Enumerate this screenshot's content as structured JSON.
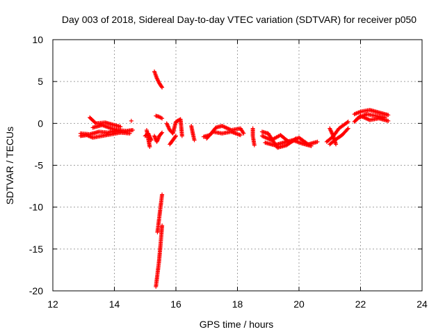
{
  "chart_data": {
    "type": "scatter",
    "title": "Day 003 of 2018, Sidereal Day-to-day VTEC variation (SDTVAR) for receiver p050",
    "xlabel": "GPS time / hours",
    "ylabel": "SDTVAR / TECUs",
    "xlim": [
      12,
      24
    ],
    "ylim": [
      -20,
      10
    ],
    "xticks": [
      12,
      14,
      16,
      18,
      20,
      22,
      24
    ],
    "yticks": [
      -20,
      -15,
      -10,
      -5,
      0,
      5,
      10
    ],
    "grid": true,
    "marker": "+",
    "marker_color": "#ff0000",
    "series": [
      {
        "name": "SDTVAR",
        "segments": [
          {
            "x": [
              12.9,
              13.2,
              13.5,
              13.8,
              14.1,
              14.4,
              14.6
            ],
            "y": [
              -1.2,
              -1.3,
              -1.0,
              -1.1,
              -0.8,
              -0.9,
              -0.8
            ]
          },
          {
            "x": [
              12.9,
              13.1,
              13.3,
              13.6,
              13.9,
              14.2,
              14.5
            ],
            "y": [
              -1.5,
              -1.4,
              -1.7,
              -1.5,
              -1.3,
              -1.1,
              -1.2
            ]
          },
          {
            "x": [
              13.2,
              13.4,
              13.7,
              14.0,
              14.2
            ],
            "y": [
              0.7,
              0.0,
              0.1,
              -0.2,
              -0.4
            ]
          },
          {
            "x": [
              13.3,
              13.6,
              13.9,
              14.2
            ],
            "y": [
              -0.5,
              -0.2,
              -0.6,
              -0.9
            ]
          },
          {
            "x": [
              14.55
            ],
            "y": [
              0.3
            ]
          },
          {
            "x": [
              15.05,
              15.1,
              15.15
            ],
            "y": [
              -0.8,
              -1.8,
              -2.8
            ]
          },
          {
            "x": [
              15.0,
              15.1,
              15.2
            ],
            "y": [
              -1.5,
              -1.2,
              -2.0
            ]
          },
          {
            "x": [
              15.3,
              15.38,
              15.46,
              15.55
            ],
            "y": [
              6.2,
              5.4,
              4.8,
              4.3
            ]
          },
          {
            "x": [
              15.35,
              15.45,
              15.55
            ],
            "y": [
              0.9,
              0.8,
              0.6
            ]
          },
          {
            "x": [
              15.3,
              15.38,
              15.46,
              15.55
            ],
            "y": [
              -1.5,
              -2.2,
              -1.5,
              -1.1
            ]
          },
          {
            "x": [
              15.4,
              15.45,
              15.5,
              15.55
            ],
            "y": [
              -13.0,
              -11.5,
              -10.0,
              -8.5
            ]
          },
          {
            "x": [
              15.35,
              15.4,
              15.45,
              15.5,
              15.55
            ],
            "y": [
              -19.5,
              -18.0,
              -16.5,
              -14.5,
              -12.2
            ]
          },
          {
            "x": [
              15.7,
              15.8,
              15.9,
              16.0,
              16.15,
              16.2
            ],
            "y": [
              0.0,
              -0.8,
              -1.2,
              0.2,
              0.5,
              -1.5
            ]
          },
          {
            "x": [
              15.8,
              15.9,
              16.0
            ],
            "y": [
              -2.5,
              -2.0,
              -1.5
            ]
          },
          {
            "x": [
              16.5,
              16.55,
              16.6
            ],
            "y": [
              -0.3,
              -1.2,
              -2.0
            ]
          },
          {
            "x": [
              16.9,
              17.1,
              17.3,
              17.5,
              17.8,
              18.1,
              18.2
            ],
            "y": [
              -1.6,
              -1.4,
              -0.5,
              -0.3,
              -0.8,
              -0.6,
              -1.2
            ]
          },
          {
            "x": [
              17.0,
              17.2,
              17.5,
              17.8,
              18.1
            ],
            "y": [
              -1.8,
              -1.0,
              -1.2,
              -1.0,
              -1.4
            ]
          },
          {
            "x": [
              18.5,
              18.5,
              18.55
            ],
            "y": [
              -0.6,
              -1.5,
              -2.6
            ]
          },
          {
            "x": [
              18.8,
              19.1,
              19.4,
              19.7,
              20.0,
              20.3,
              20.6
            ],
            "y": [
              -1.5,
              -2.0,
              -1.4,
              -2.3,
              -1.7,
              -2.5,
              -2.2
            ]
          },
          {
            "x": [
              18.9,
              19.2,
              19.5,
              19.8,
              20.1,
              20.4
            ],
            "y": [
              -2.3,
              -2.6,
              -2.3,
              -2.0,
              -2.4,
              -2.7
            ]
          },
          {
            "x": [
              18.8,
              19.0,
              19.3,
              19.6,
              19.9
            ],
            "y": [
              -1.0,
              -1.2,
              -2.9,
              -2.6,
              -1.8
            ]
          },
          {
            "x": [
              20.9,
              21.1,
              21.3,
              21.6
            ],
            "y": [
              -2.2,
              -1.6,
              -0.6,
              0.2
            ]
          },
          {
            "x": [
              21.0,
              21.2,
              21.4,
              21.6
            ],
            "y": [
              -2.5,
              -1.9,
              -1.4,
              -0.6
            ]
          },
          {
            "x": [
              21.0,
              21.1,
              21.2
            ],
            "y": [
              -0.6,
              -1.4,
              -2.5
            ]
          },
          {
            "x": [
              21.8,
              22.0,
              22.3,
              22.6,
              22.9
            ],
            "y": [
              0.2,
              0.9,
              0.4,
              0.6,
              0.3
            ]
          },
          {
            "x": [
              21.8,
              22.0,
              22.3,
              22.6,
              22.9
            ],
            "y": [
              1.1,
              1.4,
              1.6,
              1.3,
              1.0
            ]
          },
          {
            "x": [
              21.9,
              22.2,
              22.5,
              22.8
            ],
            "y": [
              0.6,
              1.1,
              0.9,
              0.7
            ]
          }
        ]
      }
    ]
  }
}
